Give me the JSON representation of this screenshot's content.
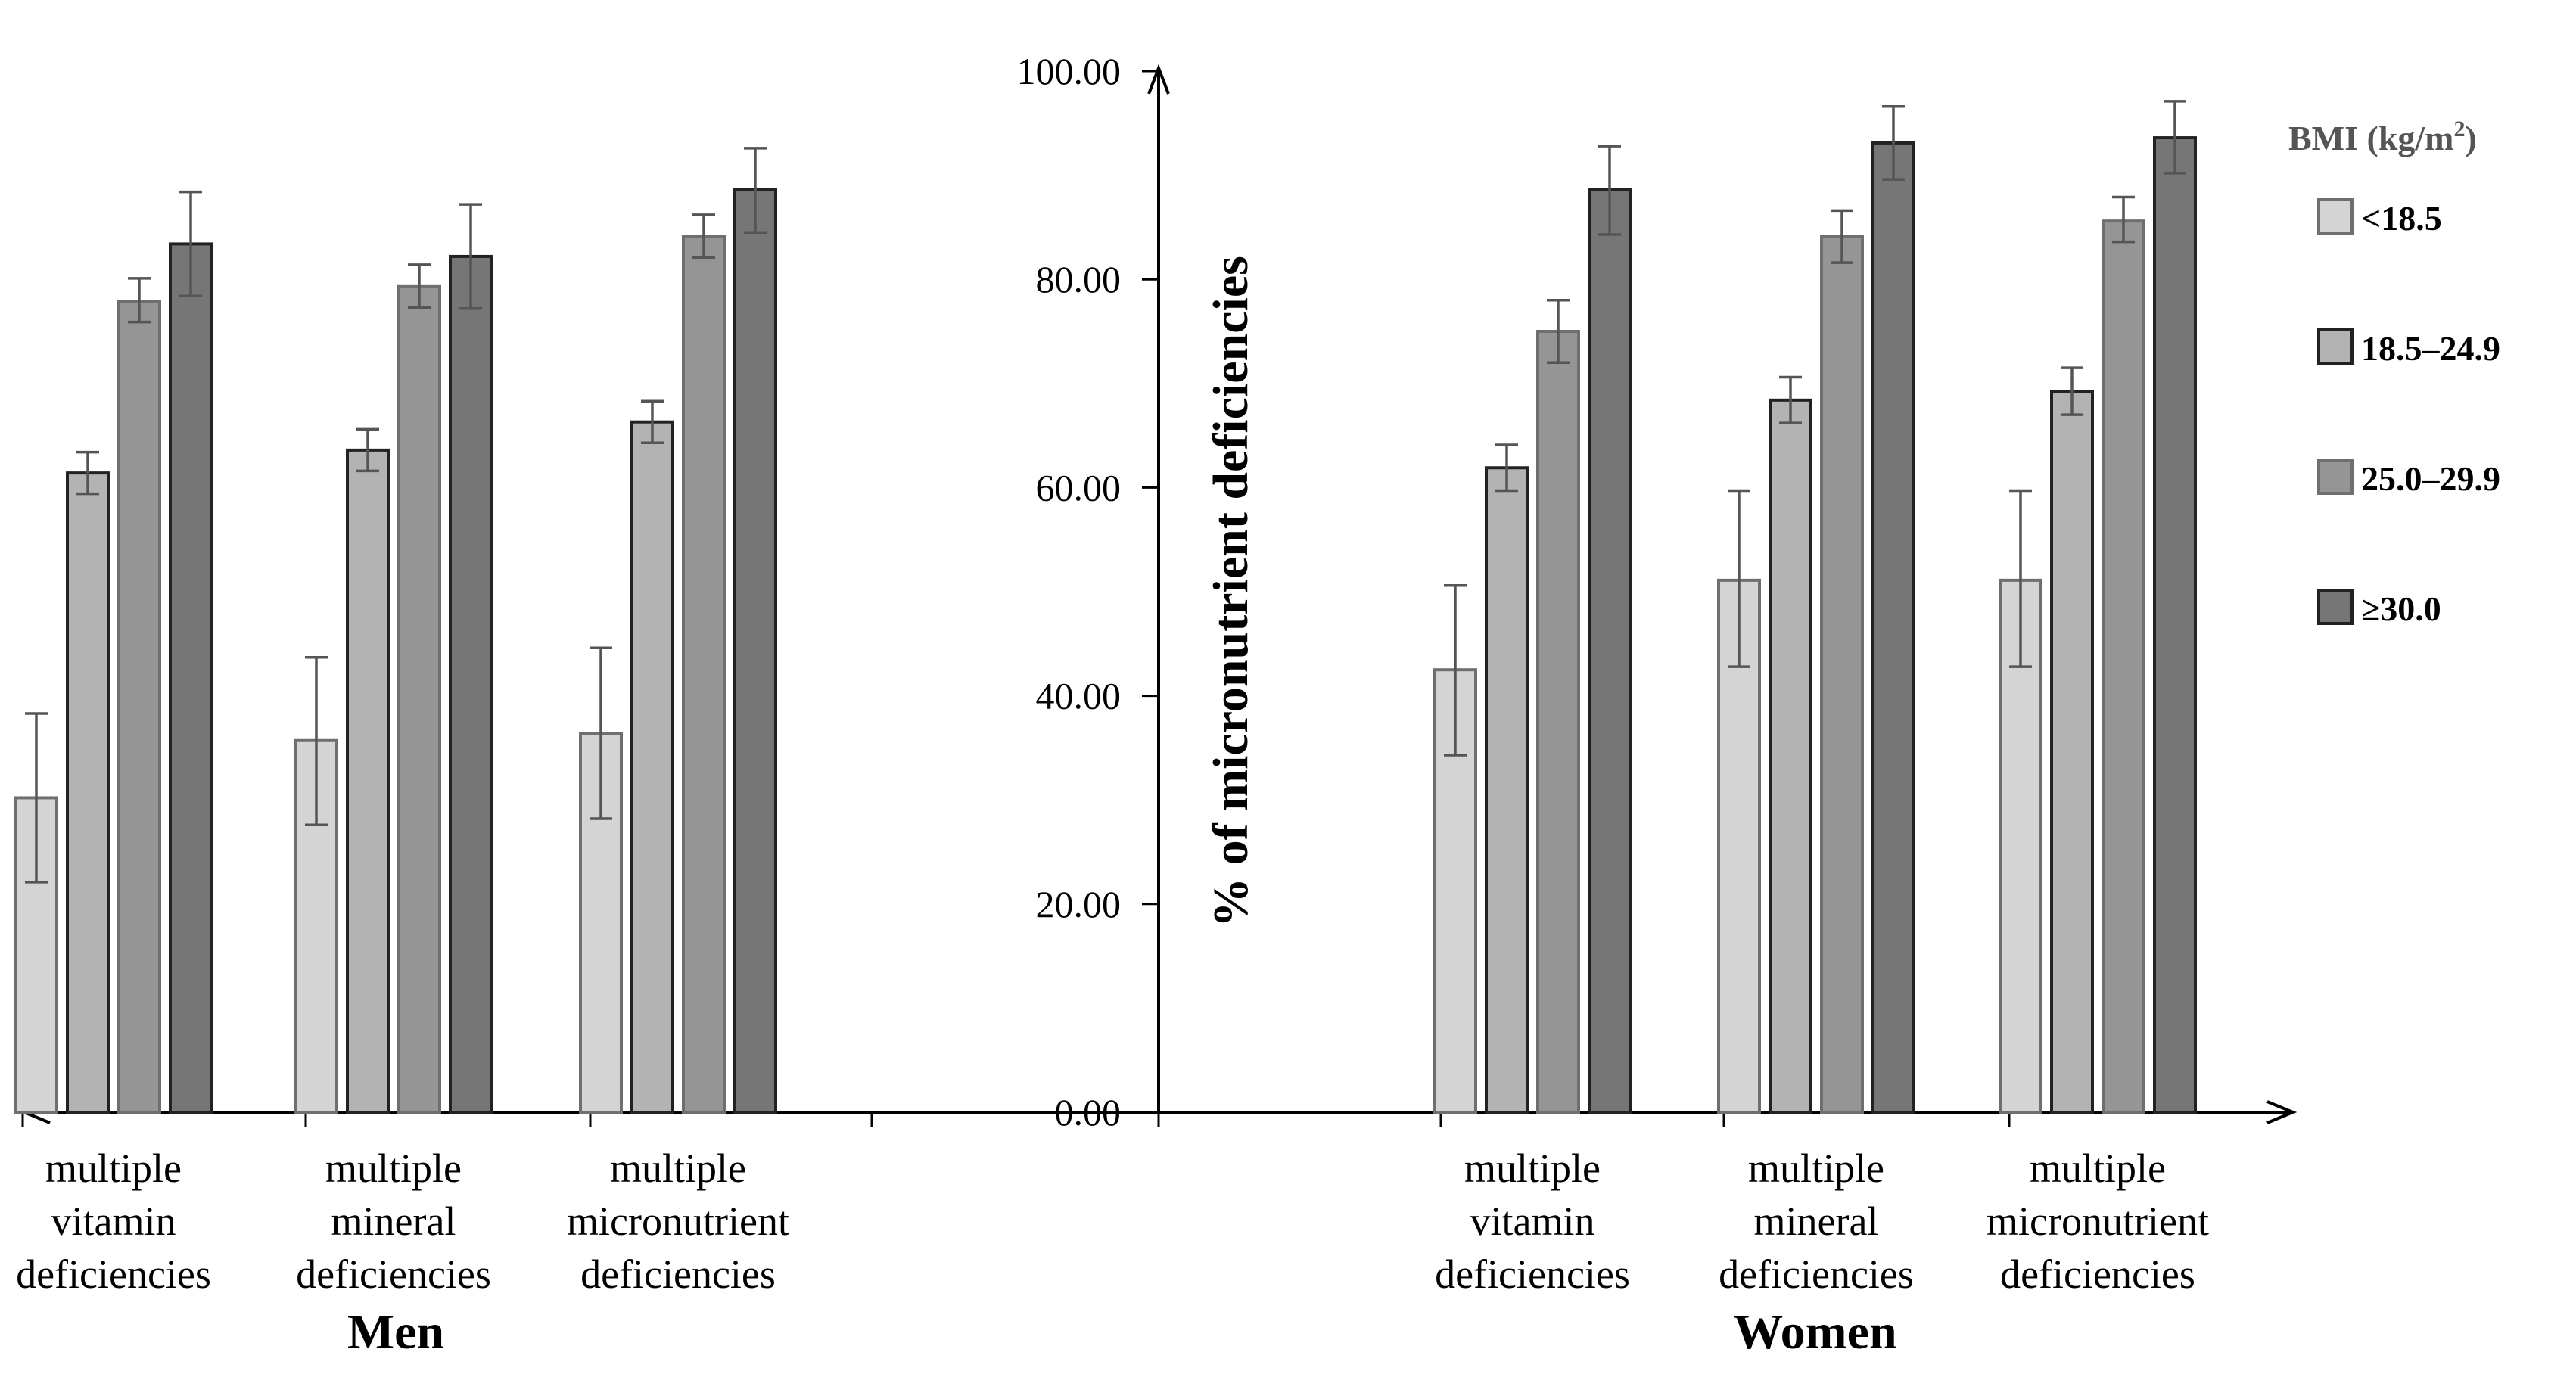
{
  "chart_data": {
    "type": "bar",
    "ylabel": "% of micronutrient deficiencies",
    "ylim": [
      0,
      100
    ],
    "yticks": [
      "0.00",
      "20.00",
      "40.00",
      "60.00",
      "80.00",
      "100.00"
    ],
    "legend": {
      "title": "BMI (kg/m",
      "title_sup": "2",
      "title_end": ")",
      "placement": "top-right"
    },
    "series_styles": [
      {
        "name": "<18.5",
        "fill": "#d4d4d4",
        "stroke": "#6f6f6f"
      },
      {
        "name": "18.5–24.9",
        "fill": "#b3b3b3",
        "stroke": "#222222"
      },
      {
        "name": "25.0–29.9",
        "fill": "#959595",
        "stroke": "#6f6f6f"
      },
      {
        "name": "≥30.0",
        "fill": "#767676",
        "stroke": "#222222"
      }
    ],
    "groups": [
      {
        "label": "Men",
        "categories": [
          [
            "multiple",
            "vitamin",
            "deficiencies"
          ],
          [
            "multiple",
            "mineral",
            "deficiencies"
          ],
          [
            "multiple",
            "micronutrient",
            "deficiencies"
          ]
        ],
        "series": [
          {
            "name": "<18.5",
            "values": [
              30.2,
              35.7,
              36.4
            ],
            "err_low": [
              8.1,
              8.1,
              8.2
            ],
            "err_high": [
              8.1,
              8.0,
              8.2
            ]
          },
          {
            "name": "18.5–24.9",
            "values": [
              61.4,
              63.6,
              66.3
            ],
            "err_low": [
              2.0,
              2.0,
              2.0
            ],
            "err_high": [
              2.0,
              2.0,
              2.0
            ]
          },
          {
            "name": "25.0–29.9",
            "values": [
              77.9,
              79.3,
              84.1
            ],
            "err_low": [
              2.0,
              2.0,
              2.0
            ],
            "err_high": [
              2.2,
              2.1,
              2.1
            ]
          },
          {
            "name": "≥30.0",
            "values": [
              83.4,
              82.2,
              88.6
            ],
            "err_low": [
              5.0,
              5.0,
              4.1
            ],
            "err_high": [
              5.0,
              5.0,
              4.0
            ]
          }
        ]
      },
      {
        "label": "Women",
        "categories": [
          [
            "multiple",
            "vitamin",
            "deficiencies"
          ],
          [
            "multiple",
            "mineral",
            "deficiencies"
          ],
          [
            "multiple",
            "micronutrient",
            "deficiencies"
          ]
        ],
        "series": [
          {
            "name": "<18.5",
            "values": [
              42.5,
              51.1,
              51.1
            ],
            "err_low": [
              8.2,
              8.3,
              8.3
            ],
            "err_high": [
              8.1,
              8.6,
              8.6
            ]
          },
          {
            "name": "18.5–24.9",
            "values": [
              61.9,
              68.4,
              69.2
            ],
            "err_low": [
              2.2,
              2.2,
              2.2
            ],
            "err_high": [
              2.2,
              2.2,
              2.3
            ]
          },
          {
            "name": "25.0–29.9",
            "values": [
              75.0,
              84.1,
              85.6
            ],
            "err_low": [
              3.0,
              2.5,
              2.0
            ],
            "err_high": [
              3.0,
              2.5,
              2.3
            ]
          },
          {
            "name": "≥30.0",
            "values": [
              88.6,
              93.1,
              93.6
            ],
            "err_low": [
              4.3,
              3.5,
              3.4
            ],
            "err_high": [
              4.2,
              3.5,
              3.5
            ]
          }
        ]
      }
    ]
  }
}
